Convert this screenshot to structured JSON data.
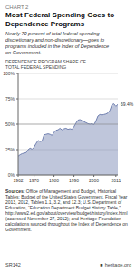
{
  "chart_data": {
    "type": "area",
    "title_label": "CHART 2",
    "title": "Most Federal Spending Goes to\nDependence Programs",
    "subtitle": "Nearly 70 percent of total federal spending—\ndiscretionary and non-discretionary—goes to\nprograms included in the Index of Dependence\non Government.",
    "y_label": "DEPENDENCE PROGRAM SHARE OF\nTOTAL FEDERAL SPENDING",
    "annotations": [
      {
        "x": 2012,
        "y": 69.4,
        "text": "69.4%"
      }
    ],
    "source_label": "Sources:",
    "source": " Office of Management and Budget, Historical Tables: Budget of the United States Government, Fiscal Year 2013, 2012, Tables 1.1, 3.2, and 12.3; U.S. Department of Education, “Education Department Budget History Table,” http://www2.ed.gov/about/overview/budget/history/index.html (accessed November 27, 2012); and Heritage Foundation calculations sourced throughout the Index of Dependence on Government.",
    "footer_left": "SR142",
    "footer_mark": "■",
    "footer_right": "heritage.org",
    "x": [
      1962,
      1963,
      1964,
      1965,
      1966,
      1967,
      1968,
      1969,
      1970,
      1971,
      1972,
      1973,
      1974,
      1975,
      1976,
      1977,
      1978,
      1979,
      1980,
      1981,
      1982,
      1983,
      1984,
      1985,
      1986,
      1987,
      1988,
      1989,
      1990,
      1991,
      1992,
      1993,
      1994,
      1995,
      1996,
      1997,
      1998,
      1999,
      2000,
      2001,
      2002,
      2003,
      2004,
      2005,
      2006,
      2007,
      2008,
      2009,
      2010,
      2011,
      2012
    ],
    "values": [
      18.5,
      20.0,
      21.0,
      21.5,
      22.0,
      25.0,
      26.5,
      25.5,
      27.5,
      31.0,
      34.0,
      33.0,
      33.5,
      39.5,
      40.0,
      40.5,
      40.0,
      39.0,
      42.0,
      44.0,
      44.5,
      46.0,
      44.5,
      45.5,
      46.0,
      45.0,
      45.5,
      45.0,
      47.5,
      51.0,
      54.0,
      54.5,
      53.5,
      52.5,
      51.5,
      50.5,
      50.0,
      50.5,
      49.5,
      53.0,
      58.0,
      59.5,
      59.0,
      59.5,
      60.0,
      61.0,
      63.5,
      69.0,
      70.0,
      67.5,
      69.4
    ],
    "color": "#7080b0",
    "reference_line": 50,
    "xlim": [
      1962,
      2012
    ],
    "xticks": [
      1962,
      1970,
      1980,
      1990,
      2000,
      2011
    ],
    "ylim": [
      0,
      100
    ],
    "yticks": [
      {
        "value": 0,
        "label": "0%"
      },
      {
        "value": 25,
        "label": "25%"
      },
      {
        "value": 50,
        "label": "50%"
      },
      {
        "value": 75,
        "label": "75%"
      },
      {
        "value": 100,
        "label": "100%"
      }
    ],
    "grid": true
  }
}
